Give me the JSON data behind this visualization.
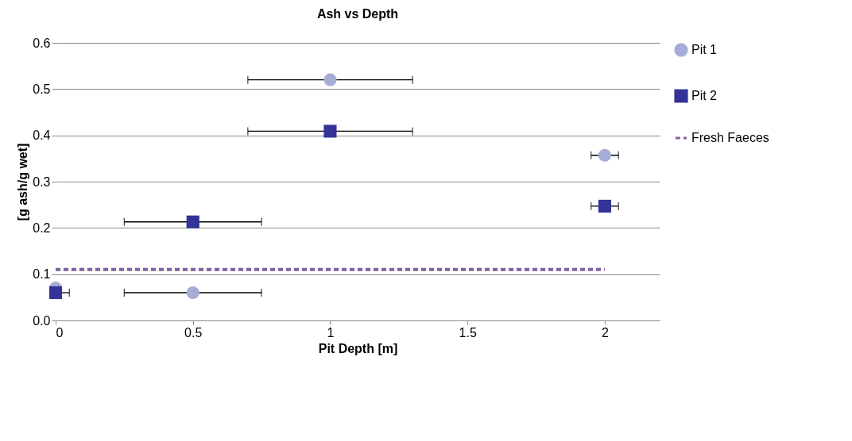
{
  "chart_data": {
    "type": "scatter",
    "title": "Ash vs Depth",
    "xlabel": "Pit Depth [m]",
    "ylabel": "[g ash/g wet]",
    "x": [
      0,
      0.5,
      1,
      2
    ],
    "series": [
      {
        "name": "Pit 1",
        "color": "#a5acd6",
        "marker": "circle",
        "values": [
          0.07,
          0.06,
          0.52,
          0.357
        ],
        "xerrors": [
          null,
          0.25,
          0.3,
          0.05
        ]
      },
      {
        "name": "Pit 2",
        "color": "#333399",
        "marker": "square",
        "values": [
          0.06,
          0.213,
          0.409,
          0.247
        ],
        "xerrors": [
          [
            0,
            0.05
          ],
          0.25,
          0.3,
          0.05
        ]
      },
      {
        "name": "Fresh Faeces",
        "type": "line",
        "color": "#8064a2",
        "line_style": "dashed",
        "marker": "none",
        "x": [
          0,
          2
        ],
        "values": [
          0.11,
          0.11
        ]
      }
    ],
    "xlim": [
      0,
      2.2
    ],
    "xticks": [
      0,
      0.5,
      1,
      1.5,
      2
    ],
    "ylim": [
      0,
      0.6
    ],
    "yticks": [
      {
        "value": 0,
        "label": "0.0"
      },
      {
        "value": 0.1,
        "label": "0.1"
      },
      {
        "value": 0.2,
        "label": "0.2"
      },
      {
        "value": 0.3,
        "label": "0.3"
      },
      {
        "value": 0.4,
        "label": "0.4"
      },
      {
        "value": 0.5,
        "label": "0.5"
      },
      {
        "value": 0.6,
        "label": "0.6"
      }
    ],
    "grid": "y",
    "legend": "right"
  }
}
